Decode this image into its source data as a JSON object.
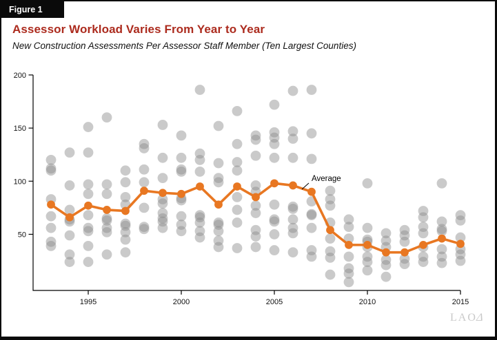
{
  "header": {
    "figure_label": "Figure 1",
    "title": "Assessor Workload Varies From Year to Year",
    "subtitle": "New Construction Assessments Per Assessor Staff Member (Ten Largest Counties)",
    "title_color": "#AC2B1E"
  },
  "footer": {
    "logo_text": "LAO",
    "logo_glyph": "Δ"
  },
  "chart_data": {
    "type": "scatter",
    "title": "Assessor Workload Varies From Year to Year",
    "subtitle": "New Construction Assessments Per Assessor Staff Member (Ten Largest Counties)",
    "xlabel": "",
    "ylabel": "",
    "xlim": [
      1992.5,
      2015.5
    ],
    "ylim": [
      0,
      200
    ],
    "x_ticks": [
      1995,
      2000,
      2005,
      2010,
      2015
    ],
    "y_ticks": [
      50,
      100,
      150,
      200
    ],
    "grid": false,
    "legend_position": "none",
    "annotation": {
      "text": "Average",
      "near_year": 2006
    },
    "colors": {
      "average_line": "#E87722",
      "county_dots": "#8a8a8a",
      "axis": "#000000"
    },
    "series": [
      {
        "name": "Individual county values (ten largest counties)",
        "type": "scatter",
        "points_by_year": [
          {
            "year": 1993,
            "values": [
              120,
              112,
              110,
              83,
              67,
              56,
              43,
              39
            ]
          },
          {
            "year": 1994,
            "values": [
              127,
              96,
              73,
              64,
              62,
              49,
              31,
              24
            ]
          },
          {
            "year": 1995,
            "values": [
              151,
              127,
              97,
              88,
              68,
              56,
              53,
              39,
              24
            ]
          },
          {
            "year": 1996,
            "values": [
              160,
              97,
              88,
              65,
              63,
              56,
              52,
              31
            ]
          },
          {
            "year": 1997,
            "values": [
              110,
              99,
              85,
              78,
              60,
              58,
              52,
              45,
              33
            ]
          },
          {
            "year": 1998,
            "values": [
              135,
              131,
              111,
              99,
              75,
              57,
              55
            ]
          },
          {
            "year": 1999,
            "values": [
              153,
              122,
              103,
              83,
              79,
              70,
              65,
              62,
              56
            ]
          },
          {
            "year": 2000,
            "values": [
              143,
              122,
              111,
              109,
              84,
              82,
              67,
              59,
              53
            ]
          },
          {
            "year": 2001,
            "values": [
              186,
              126,
              120,
              109,
              68,
              66,
              61,
              53,
              47
            ]
          },
          {
            "year": 2002,
            "values": [
              152,
              117,
              103,
              99,
              61,
              59,
              53,
              44,
              38
            ]
          },
          {
            "year": 2003,
            "values": [
              166,
              135,
              118,
              110,
              85,
              73,
              61,
              37
            ]
          },
          {
            "year": 2004,
            "values": [
              143,
              139,
              124,
              96,
              90,
              77,
              70,
              54,
              48,
              38
            ]
          },
          {
            "year": 2005,
            "values": [
              172,
              146,
              141,
              135,
              122,
              78,
              64,
              62,
              50,
              35
            ]
          },
          {
            "year": 2006,
            "values": [
              185,
              147,
              140,
              122,
              76,
              74,
              64,
              56,
              51,
              33
            ]
          },
          {
            "year": 2007,
            "values": [
              186,
              145,
              121,
              81,
              69,
              68,
              56,
              35,
              29
            ]
          },
          {
            "year": 2008,
            "values": [
              91,
              83,
              77,
              61,
              46,
              34,
              28,
              12
            ]
          },
          {
            "year": 2009,
            "values": [
              64,
              57,
              46,
              29,
              18,
              13,
              5
            ]
          },
          {
            "year": 2010,
            "values": [
              98,
              56,
              45,
              43,
              38,
              29,
              24,
              16
            ]
          },
          {
            "year": 2011,
            "values": [
              51,
              44,
              38,
              26,
              21,
              10
            ]
          },
          {
            "year": 2012,
            "values": [
              54,
              49,
              43,
              27,
              22
            ]
          },
          {
            "year": 2013,
            "values": [
              72,
              66,
              57,
              51,
              38,
              29,
              24
            ]
          },
          {
            "year": 2014,
            "values": [
              98,
              62,
              55,
              53,
              36,
              29,
              23
            ]
          },
          {
            "year": 2015,
            "values": [
              68,
              63,
              47,
              36,
              31,
              25
            ]
          }
        ]
      },
      {
        "name": "Average",
        "type": "line",
        "x": [
          1993,
          1994,
          1995,
          1996,
          1997,
          1998,
          1999,
          2000,
          2001,
          2002,
          2003,
          2004,
          2005,
          2006,
          2007,
          2008,
          2009,
          2010,
          2011,
          2012,
          2013,
          2014,
          2015
        ],
        "y": [
          78,
          66,
          77,
          73,
          72,
          91,
          89,
          88,
          95,
          78,
          95,
          85,
          98,
          96,
          90,
          54,
          40,
          40,
          33,
          33,
          40,
          46,
          41
        ]
      }
    ]
  }
}
